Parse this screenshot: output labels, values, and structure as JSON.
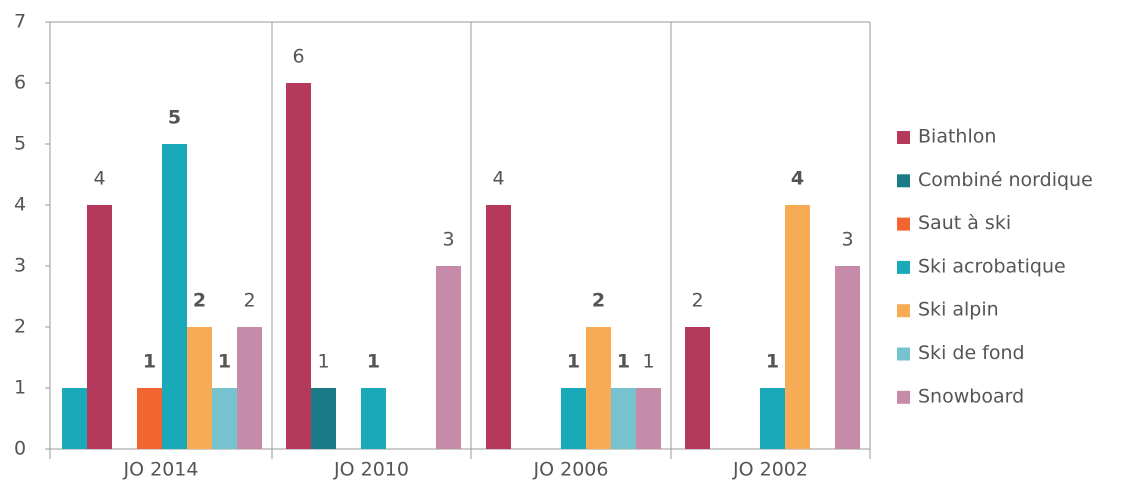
{
  "chart_data": {
    "type": "bar",
    "categories": [
      "JO 2014",
      "JO 2010",
      "JO 2006",
      "JO 2002"
    ],
    "series": [
      {
        "color": "#1aa9b8",
        "values": [
          1,
          null,
          null,
          null
        ],
        "labels": false
      },
      {
        "name": "Biathlon",
        "color": "#b5395a",
        "values": [
          4,
          6,
          4,
          2
        ],
        "label_weight": "normal"
      },
      {
        "name": "Combiné nordique",
        "color": "#1a7a85",
        "values": [
          null,
          1,
          null,
          null
        ],
        "label_weight": "normal"
      },
      {
        "name": "Saut à ski",
        "color": "#f26430",
        "values": [
          1,
          null,
          null,
          null
        ],
        "label_weight": "bold"
      },
      {
        "name": "Ski acrobatique",
        "color": "#1aa9b8",
        "values": [
          5,
          1,
          1,
          1
        ],
        "label_weight": "bold"
      },
      {
        "name": "Ski alpin",
        "color": "#f8ab55",
        "values": [
          2,
          null,
          2,
          4
        ],
        "label_weight": "bold"
      },
      {
        "name": "Ski de fond",
        "color": "#76c3cf",
        "values": [
          1,
          null,
          1,
          null
        ],
        "label_weight": "bold"
      },
      {
        "name": "Snowboard",
        "color": "#c68ba8",
        "values": [
          2,
          3,
          1,
          3
        ],
        "label_weight": "normal"
      }
    ],
    "ylim": [
      0,
      7
    ],
    "yticks": [
      0,
      1,
      2,
      3,
      4,
      5,
      6,
      7
    ],
    "legend": "right",
    "grid": false
  }
}
